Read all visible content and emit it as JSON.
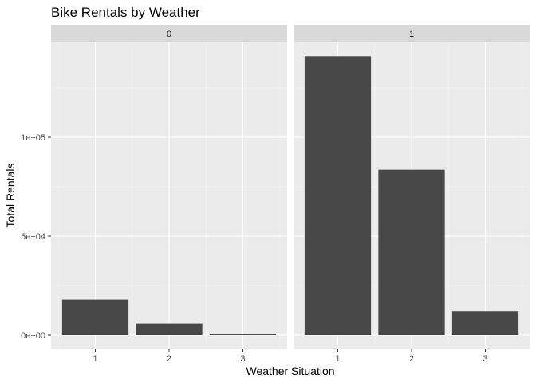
{
  "chart_data": {
    "type": "bar",
    "title": "Bike Rentals by Weather",
    "xlabel": "Weather Situation",
    "ylabel": "Total Rentals",
    "categories": [
      "1",
      "2",
      "3"
    ],
    "ylim": [
      0,
      150000
    ],
    "yticks": [
      0,
      50000,
      100000
    ],
    "ytick_labels": [
      "0e+00",
      "5e+04",
      "1e+05"
    ],
    "grid": true,
    "facets": [
      {
        "label": "0",
        "values": [
          17900,
          5800,
          600
        ]
      },
      {
        "label": "1",
        "values": [
          141000,
          83600,
          12000
        ]
      }
    ],
    "colors": {
      "bar": "#474747",
      "panel": "#ebebeb",
      "strip": "#d9d9d9",
      "grid_major": "#ffffff",
      "grid_minor": "#f5f5f5",
      "tick": "#333333"
    }
  }
}
